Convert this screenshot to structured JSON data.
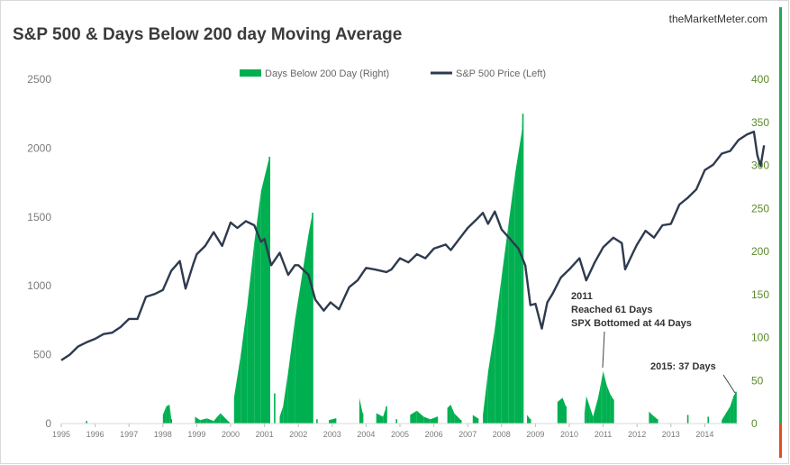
{
  "source_label": "theMarketMeter.com",
  "chart_data": {
    "type": "bar+line",
    "title": "S&P 500  & Days Below 200 day Moving Average",
    "legend_position": "top-center",
    "grid": false,
    "colors": {
      "days_bar": "#00b050",
      "price_line": "#2e3a4f",
      "right_axis": "#5a8a2a",
      "right_edge_bar": "#22aa55"
    },
    "left_axis": {
      "ylim": [
        0,
        2500
      ],
      "ticks": [
        0,
        500,
        1000,
        1500,
        2000,
        2500
      ],
      "tick_labels": [
        "0",
        "500",
        "1000",
        "1500",
        "2000",
        "2500"
      ]
    },
    "right_axis": {
      "ylim": [
        0,
        400
      ],
      "ticks": [
        0,
        50,
        100,
        150,
        200,
        250,
        300,
        350,
        400
      ],
      "tick_labels": [
        "0",
        "50",
        "100",
        "150",
        "200",
        "250",
        "300",
        "350",
        "400"
      ]
    },
    "x_axis": {
      "xlim": [
        1995,
        2015
      ],
      "ticks": [
        1995,
        1996,
        1997,
        1998,
        1999,
        2000,
        2001,
        2002,
        2003,
        2004,
        2005,
        2006,
        2007,
        2008,
        2009,
        2010,
        2011,
        2012,
        2013,
        2014
      ],
      "tick_labels": [
        "1995",
        "1996",
        "1997",
        "1998",
        "1999",
        "2000",
        "2001",
        "2002",
        "2003",
        "2004",
        "2005",
        "2006",
        "2007",
        "2008",
        "2009",
        "2010",
        "2011",
        "2012",
        "2013",
        "2014"
      ]
    },
    "series": [
      {
        "name": "Days Below 200 Day (Right)",
        "kind": "bar",
        "axis": "right",
        "points": [
          [
            1995.75,
            3
          ],
          [
            1998.0,
            10
          ],
          [
            1998.1,
            20
          ],
          [
            1998.2,
            22
          ],
          [
            1998.25,
            5
          ],
          [
            1998.95,
            8
          ],
          [
            1999.1,
            4
          ],
          [
            1999.3,
            6
          ],
          [
            1999.5,
            3
          ],
          [
            1999.7,
            12
          ],
          [
            1999.95,
            2
          ],
          [
            2000.0,
            0
          ],
          [
            2000.1,
            30
          ],
          [
            2000.3,
            80
          ],
          [
            2000.5,
            140
          ],
          [
            2000.7,
            210
          ],
          [
            2000.9,
            270
          ],
          [
            2001.15,
            310
          ],
          [
            2001.2,
            0
          ],
          [
            2001.3,
            35
          ],
          [
            2001.35,
            0
          ],
          [
            2001.45,
            8
          ],
          [
            2001.55,
            20
          ],
          [
            2001.7,
            60
          ],
          [
            2001.9,
            120
          ],
          [
            2002.1,
            170
          ],
          [
            2002.3,
            220
          ],
          [
            2002.42,
            245
          ],
          [
            2002.45,
            0
          ],
          [
            2002.55,
            5
          ],
          [
            2002.9,
            4
          ],
          [
            2003.1,
            6
          ],
          [
            2003.8,
            30
          ],
          [
            2003.9,
            12
          ],
          [
            2004.3,
            12
          ],
          [
            2004.5,
            8
          ],
          [
            2004.6,
            20
          ],
          [
            2004.9,
            5
          ],
          [
            2005.3,
            10
          ],
          [
            2005.5,
            15
          ],
          [
            2005.7,
            8
          ],
          [
            2005.9,
            5
          ],
          [
            2006.1,
            8
          ],
          [
            2006.4,
            18
          ],
          [
            2006.5,
            22
          ],
          [
            2006.6,
            12
          ],
          [
            2006.8,
            4
          ],
          [
            2007.15,
            10
          ],
          [
            2007.3,
            6
          ],
          [
            2007.35,
            0
          ],
          [
            2007.45,
            10
          ],
          [
            2007.6,
            60
          ],
          [
            2007.8,
            110
          ],
          [
            2008.0,
            170
          ],
          [
            2008.2,
            230
          ],
          [
            2008.4,
            290
          ],
          [
            2008.6,
            340
          ],
          [
            2008.63,
            360
          ],
          [
            2008.65,
            0
          ],
          [
            2008.75,
            10
          ],
          [
            2008.85,
            5
          ],
          [
            2009.65,
            25
          ],
          [
            2009.8,
            30
          ],
          [
            2009.9,
            20
          ],
          [
            2010.45,
            12
          ],
          [
            2010.5,
            32
          ],
          [
            2010.6,
            20
          ],
          [
            2010.7,
            8
          ],
          [
            2010.85,
            30
          ],
          [
            2010.95,
            50
          ],
          [
            2011.0,
            61
          ],
          [
            2011.1,
            45
          ],
          [
            2011.2,
            35
          ],
          [
            2011.3,
            28
          ],
          [
            2012.35,
            14
          ],
          [
            2012.45,
            10
          ],
          [
            2012.6,
            5
          ],
          [
            2013.5,
            10
          ],
          [
            2014.1,
            8
          ],
          [
            2014.5,
            4
          ],
          [
            2014.75,
            20
          ],
          [
            2014.85,
            32
          ],
          [
            2014.92,
            37
          ]
        ]
      },
      {
        "name": "S&P 500 Price (Left)",
        "kind": "line",
        "axis": "left",
        "points": [
          [
            1995.0,
            460
          ],
          [
            1995.25,
            500
          ],
          [
            1995.5,
            560
          ],
          [
            1995.75,
            590
          ],
          [
            1996.0,
            615
          ],
          [
            1996.25,
            650
          ],
          [
            1996.5,
            660
          ],
          [
            1996.75,
            700
          ],
          [
            1997.0,
            760
          ],
          [
            1997.25,
            760
          ],
          [
            1997.5,
            920
          ],
          [
            1997.75,
            940
          ],
          [
            1998.0,
            970
          ],
          [
            1998.25,
            1110
          ],
          [
            1998.5,
            1180
          ],
          [
            1998.67,
            980
          ],
          [
            1998.9,
            1160
          ],
          [
            1999.0,
            1230
          ],
          [
            1999.25,
            1290
          ],
          [
            1999.5,
            1390
          ],
          [
            1999.75,
            1290
          ],
          [
            2000.0,
            1460
          ],
          [
            2000.2,
            1420
          ],
          [
            2000.45,
            1470
          ],
          [
            2000.7,
            1440
          ],
          [
            2000.9,
            1320
          ],
          [
            2001.0,
            1340
          ],
          [
            2001.2,
            1150
          ],
          [
            2001.45,
            1240
          ],
          [
            2001.7,
            1080
          ],
          [
            2001.9,
            1150
          ],
          [
            2002.0,
            1150
          ],
          [
            2002.3,
            1080
          ],
          [
            2002.5,
            900
          ],
          [
            2002.75,
            820
          ],
          [
            2002.95,
            880
          ],
          [
            2003.2,
            830
          ],
          [
            2003.5,
            990
          ],
          [
            2003.75,
            1040
          ],
          [
            2004.0,
            1130
          ],
          [
            2004.25,
            1120
          ],
          [
            2004.6,
            1100
          ],
          [
            2004.75,
            1120
          ],
          [
            2005.0,
            1200
          ],
          [
            2005.25,
            1170
          ],
          [
            2005.5,
            1230
          ],
          [
            2005.75,
            1200
          ],
          [
            2006.0,
            1270
          ],
          [
            2006.35,
            1300
          ],
          [
            2006.5,
            1260
          ],
          [
            2006.75,
            1340
          ],
          [
            2007.0,
            1420
          ],
          [
            2007.25,
            1480
          ],
          [
            2007.45,
            1530
          ],
          [
            2007.6,
            1450
          ],
          [
            2007.8,
            1540
          ],
          [
            2008.0,
            1410
          ],
          [
            2008.25,
            1340
          ],
          [
            2008.5,
            1270
          ],
          [
            2008.7,
            1150
          ],
          [
            2008.85,
            860
          ],
          [
            2009.0,
            870
          ],
          [
            2009.19,
            690
          ],
          [
            2009.35,
            880
          ],
          [
            2009.5,
            940
          ],
          [
            2009.75,
            1060
          ],
          [
            2010.0,
            1120
          ],
          [
            2010.3,
            1200
          ],
          [
            2010.5,
            1040
          ],
          [
            2010.75,
            1170
          ],
          [
            2011.0,
            1280
          ],
          [
            2011.3,
            1350
          ],
          [
            2011.55,
            1310
          ],
          [
            2011.65,
            1120
          ],
          [
            2011.9,
            1250
          ],
          [
            2012.0,
            1300
          ],
          [
            2012.25,
            1400
          ],
          [
            2012.5,
            1350
          ],
          [
            2012.75,
            1440
          ],
          [
            2013.0,
            1450
          ],
          [
            2013.25,
            1590
          ],
          [
            2013.5,
            1640
          ],
          [
            2013.75,
            1700
          ],
          [
            2014.0,
            1840
          ],
          [
            2014.25,
            1880
          ],
          [
            2014.5,
            1960
          ],
          [
            2014.75,
            1980
          ],
          [
            2015.0,
            2060
          ],
          [
            2015.25,
            2100
          ],
          [
            2015.45,
            2120
          ],
          [
            2015.55,
            1950
          ],
          [
            2015.65,
            1870
          ],
          [
            2015.75,
            2020
          ]
        ]
      }
    ],
    "annotations": [
      {
        "id": "2011",
        "lines": [
          "2011",
          "Reached 61 Days",
          "SPX Bottomed at 44 Days"
        ]
      },
      {
        "id": "2015",
        "lines": [
          "2015: 37 Days"
        ]
      }
    ]
  }
}
